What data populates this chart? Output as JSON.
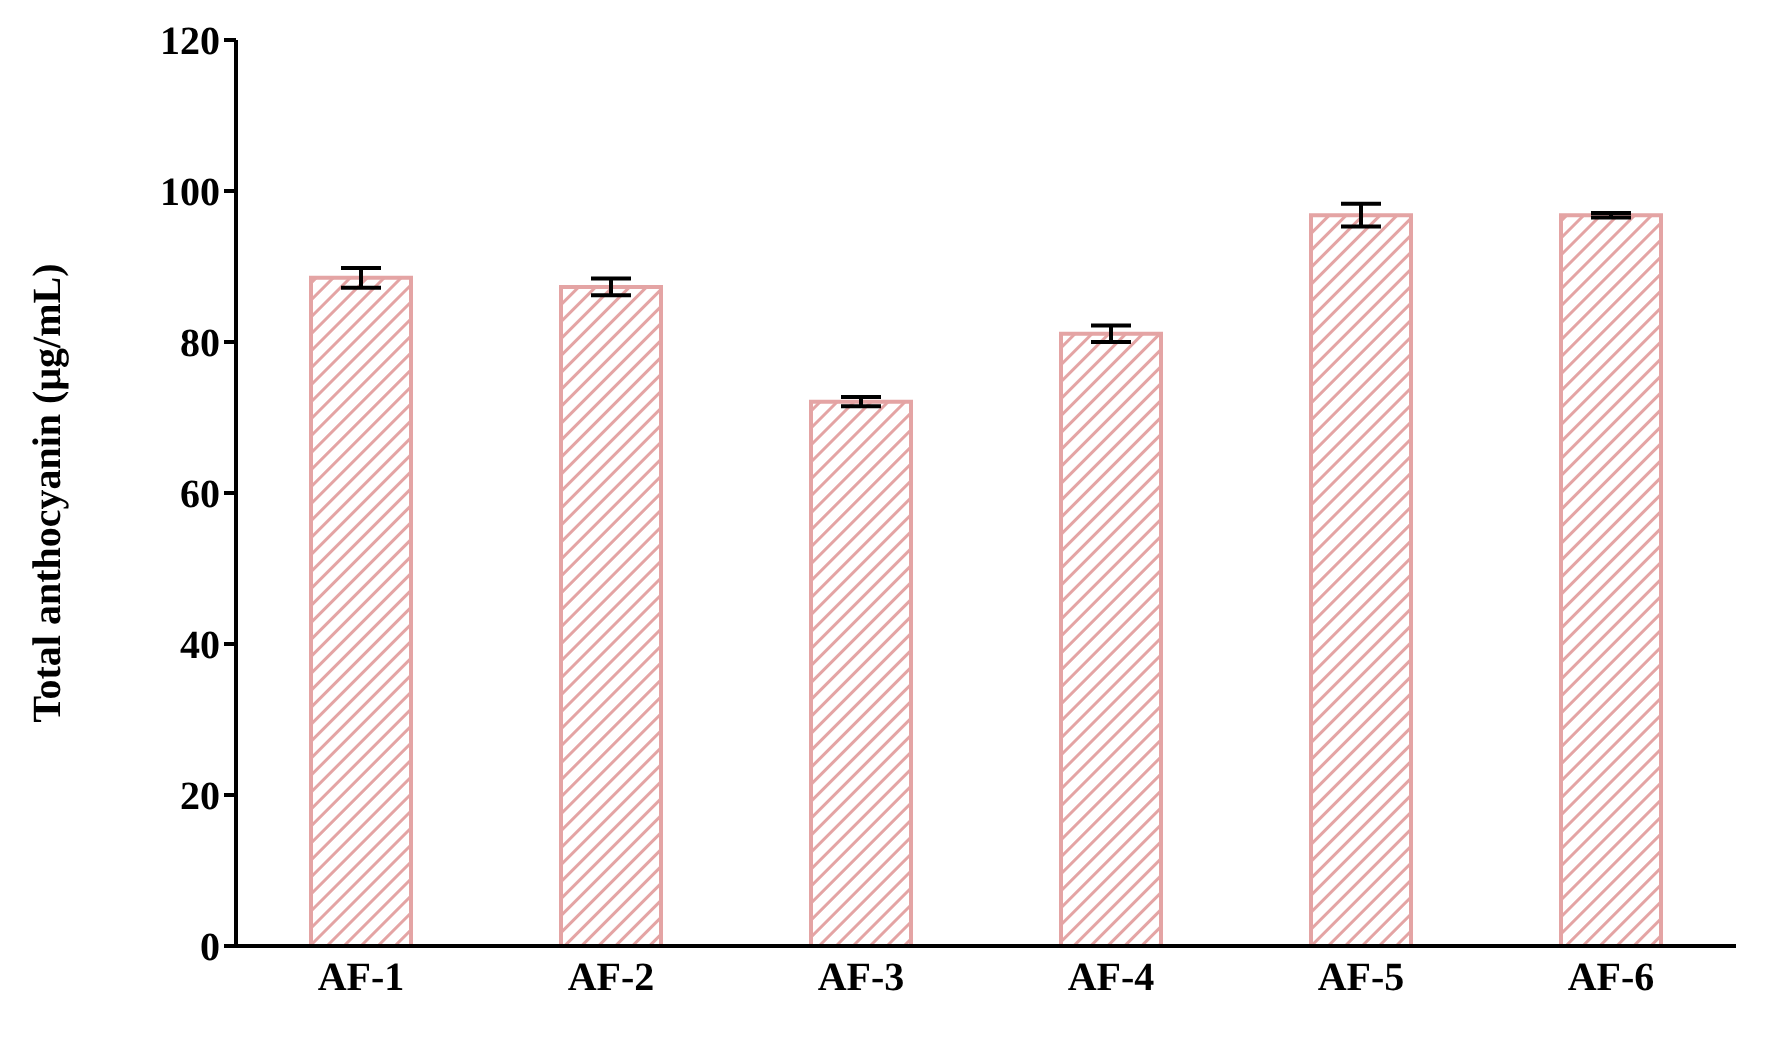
{
  "chart_data": {
    "type": "bar",
    "ylabel": "Total anthocyanin (μg/mL)",
    "categories": [
      "AF-1",
      "AF-2",
      "AF-3",
      "AF-4",
      "AF-5",
      "AF-6"
    ],
    "values": [
      88.5,
      87.3,
      72.1,
      81.1,
      96.8,
      96.8
    ],
    "errors": [
      1.3,
      1.1,
      0.6,
      1.1,
      1.5,
      0.3
    ],
    "color": "#e4a4a4",
    "ylim": [
      0,
      120
    ],
    "yticks": [
      0,
      20,
      40,
      60,
      80,
      100,
      120
    ],
    "grid": false
  }
}
